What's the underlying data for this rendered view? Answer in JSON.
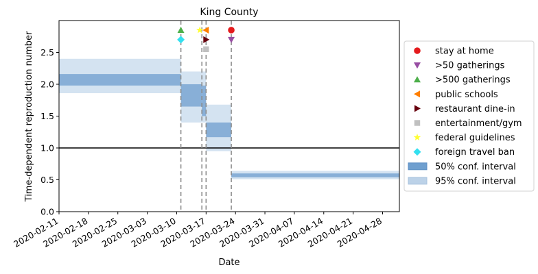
{
  "chart_data": {
    "type": "step-interval",
    "title": "King County",
    "xlabel": "Date",
    "ylabel": "Time-dependent reproduction number",
    "xlim": [
      "2020-02-11",
      "2020-05-02"
    ],
    "ylim": [
      0,
      3.0
    ],
    "x_ticks": [
      "2020-02-11",
      "2020-02-18",
      "2020-02-25",
      "2020-03-03",
      "2020-03-10",
      "2020-03-17",
      "2020-03-24",
      "2020-03-31",
      "2020-04-07",
      "2020-04-14",
      "2020-04-21",
      "2020-04-28"
    ],
    "y_ticks": [
      "0.0",
      "0.5",
      "1.0",
      "1.5",
      "2.0",
      "2.5"
    ],
    "reference_line": {
      "y": 1.0,
      "color": "#000000"
    },
    "segments": [
      {
        "start": "2020-02-11",
        "end": "2020-03-11",
        "ci50": [
          1.98,
          2.16
        ],
        "ci95": [
          1.86,
          2.4
        ]
      },
      {
        "start": "2020-03-11",
        "end": "2020-03-16",
        "ci50": [
          1.65,
          2.0
        ],
        "ci95": [
          1.4,
          2.2
        ]
      },
      {
        "start": "2020-03-16",
        "end": "2020-03-17",
        "ci50": [
          1.5,
          1.98
        ],
        "ci95": [
          1.4,
          2.2
        ]
      },
      {
        "start": "2020-03-17",
        "end": "2020-03-23",
        "ci50": [
          1.17,
          1.4
        ],
        "ci95": [
          0.95,
          1.68
        ]
      },
      {
        "start": "2020-03-23",
        "end": "2020-05-02",
        "ci50": [
          0.54,
          0.6
        ],
        "ci95": [
          0.51,
          0.64
        ]
      }
    ],
    "event_lines": [
      "2020-03-11",
      "2020-03-16",
      "2020-03-17",
      "2020-03-23"
    ],
    "events": [
      {
        "name": "stay at home",
        "date": "2020-03-23",
        "y": 2.85,
        "marker": "circle",
        "color": "#e41a1c"
      },
      {
        "name": ">50 gatherings",
        "date": "2020-03-23",
        "y": 2.7,
        "marker": "triangle-down",
        "color": "#984ea3"
      },
      {
        "name": ">500 gatherings",
        "date": "2020-03-11",
        "y": 2.85,
        "marker": "triangle-up",
        "color": "#4daf4a"
      },
      {
        "name": "public schools",
        "date": "2020-03-17",
        "y": 2.85,
        "marker": "triangle-left",
        "color": "#ff7f00"
      },
      {
        "name": "restaurant dine-in",
        "date": "2020-03-17",
        "y": 2.7,
        "marker": "triangle-right",
        "color": "#67000d"
      },
      {
        "name": "entertainment/gym",
        "date": "2020-03-17",
        "y": 2.55,
        "marker": "square",
        "color": "#c0c0c0"
      },
      {
        "name": "federal guidelines",
        "date": "2020-03-16",
        "y": 2.85,
        "marker": "star",
        "color": "#ffff33"
      },
      {
        "name": "foreign travel ban",
        "date": "2020-03-11",
        "y": 2.7,
        "marker": "diamond",
        "color": "#33e0f0"
      }
    ],
    "legend_extra": [
      {
        "name": "50% conf. interval",
        "color": "#6f9fcf"
      },
      {
        "name": "95% conf. interval",
        "color": "#bcd2e8"
      }
    ],
    "legend_position": "center-right",
    "grid": false
  }
}
